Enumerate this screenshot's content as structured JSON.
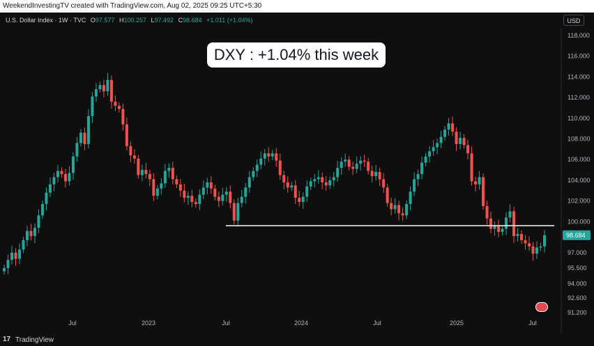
{
  "header": {
    "caption": "WeekendInvestingTV created with TradingView.com, Aug 02, 2025 09:25 UTC+5:30"
  },
  "legend": {
    "symbol": "U.S. Dollar Index · 1W · TVC",
    "o_label": "O",
    "o_value": "97.577",
    "h_label": "H",
    "h_value": "100.257",
    "l_label": "L",
    "l_value": "97.492",
    "c_label": "C",
    "c_value": "98.684",
    "change": "+1.011 (+1.04%)"
  },
  "currency": "USD",
  "banner": "DXY : +1.04% this week",
  "footer": {
    "brand": "TradingView",
    "logo": "17"
  },
  "colors": {
    "up": "#26a69a",
    "down": "#ef5350",
    "support_line": "#ffffff",
    "price_tag": "#26a69a"
  },
  "chart_data": {
    "type": "candlestick",
    "yticks": [
      118,
      116,
      114,
      112,
      110,
      108,
      106,
      104,
      102,
      100,
      98.684,
      97,
      95.5,
      94,
      92.6,
      91.2
    ],
    "ytick_labels": [
      "118.000",
      "116.000",
      "114.000",
      "112.000",
      "110.000",
      "108.000",
      "106.000",
      "104.000",
      "102.000",
      "100.000",
      "98.684",
      "97.000",
      "95.500",
      "94.000",
      "92.600",
      "91.200"
    ],
    "xticks": [
      "Jul",
      "2023",
      "Jul",
      "2024",
      "Jul",
      "2025",
      "Jul"
    ],
    "last_price": "98.684",
    "support_level": 99.6,
    "closes": [
      95.5,
      96.3,
      97.0,
      96.4,
      97.3,
      98.2,
      99.1,
      98.6,
      99.4,
      100.6,
      101.7,
      102.8,
      103.6,
      104.3,
      104.9,
      104.6,
      103.9,
      104.7,
      106.3,
      107.6,
      108.6,
      107.5,
      110.2,
      112.1,
      112.8,
      113.2,
      112.6,
      113.7,
      111.6,
      111.2,
      110.9,
      109.4,
      107.3,
      106.4,
      106.1,
      104.5,
      105.0,
      104.6,
      104.1,
      102.5,
      103.2,
      103.7,
      104.9,
      105.2,
      104.1,
      103.6,
      103.0,
      102.3,
      102.5,
      101.9,
      101.7,
      102.6,
      103.3,
      103.8,
      103.2,
      102.4,
      102.0,
      102.6,
      102.9,
      101.8,
      100.1,
      101.8,
      102.4,
      103.3,
      104.3,
      104.9,
      105.5,
      106.1,
      106.6,
      106.3,
      106.6,
      105.9,
      104.5,
      103.8,
      103.3,
      103.5,
      102.3,
      101.9,
      102.4,
      103.4,
      103.9,
      104.1,
      104.3,
      103.8,
      103.5,
      104.0,
      104.3,
      105.2,
      105.8,
      106.0,
      105.3,
      105.1,
      105.6,
      105.9,
      105.8,
      104.9,
      104.4,
      104.8,
      104.1,
      103.3,
      101.8,
      101.2,
      101.6,
      100.8,
      100.6,
      101.7,
      102.9,
      104.1,
      104.6,
      105.7,
      106.3,
      106.8,
      107.2,
      107.6,
      108.2,
      108.9,
      109.5,
      108.7,
      107.5,
      108.1,
      107.4,
      106.6,
      103.9,
      103.6,
      104.3,
      101.5,
      100.3,
      99.3,
      99.6,
      99.0,
      99.3,
      100.4,
      101.0,
      98.6,
      98.8,
      98.2,
      97.9,
      97.6,
      96.9,
      97.5,
      97.6,
      98.68
    ]
  }
}
